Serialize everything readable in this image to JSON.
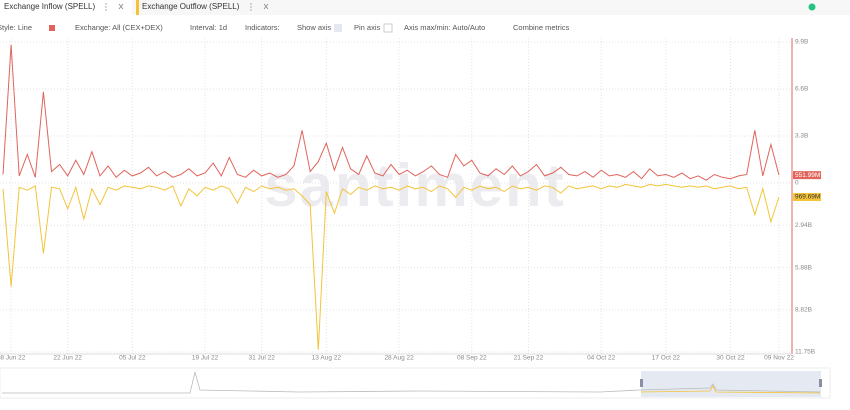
{
  "tabs_source": "series",
  "toolbar": [
    "Style: Line",
    "Exchange: All (CEX+DEX)",
    "Interval: 1d",
    "Indicators:",
    "Show axis",
    "Pin axis",
    "Axis max/min: Auto/Auto",
    "Combine metrics"
  ],
  "watermark": "santiment",
  "chart_data": {
    "type": "line",
    "categories": [
      null,
      "08 Jun 22",
      null,
      null,
      null,
      null,
      null,
      null,
      "22 Jun 22",
      null,
      null,
      null,
      null,
      null,
      null,
      null,
      "05 Jul 22",
      null,
      null,
      null,
      null,
      null,
      null,
      null,
      null,
      "19 Jul 22",
      null,
      null,
      null,
      null,
      null,
      null,
      "31 Jul 22",
      null,
      null,
      null,
      null,
      null,
      null,
      null,
      "13 Aug 22",
      null,
      null,
      null,
      null,
      null,
      null,
      null,
      null,
      "28 Aug 22",
      null,
      null,
      null,
      null,
      null,
      null,
      null,
      null,
      "08 Sep 22",
      null,
      null,
      null,
      null,
      null,
      null,
      "21 Sep 22",
      null,
      null,
      null,
      null,
      null,
      null,
      null,
      null,
      "04 Oct 22",
      null,
      null,
      null,
      null,
      null,
      null,
      null,
      "17 Oct 22",
      null,
      null,
      null,
      null,
      null,
      null,
      null,
      "30 Oct 22",
      null,
      null,
      null,
      null,
      null,
      "09 Nov 22"
    ],
    "ylim": [
      0,
      9.9
    ],
    "yticks": [
      0,
      {
        "value": 3.3,
        "label": "3.3B"
      },
      {
        "value": 6.6,
        "label": "6.6B"
      },
      {
        "value": 9.9,
        "label": "9.9B"
      }
    ],
    "y2lim": [
      0,
      11.75
    ],
    "y2ticks": [
      {
        "value": 2.94,
        "label": "2.94B"
      },
      {
        "value": 5.88,
        "label": "5.88B"
      },
      {
        "value": 8.82,
        "label": "8.82B"
      },
      {
        "value": 11.75,
        "label": "11.75B"
      }
    ],
    "grid": true,
    "series": [
      {
        "name": "Exchange Inflow (SPELL)",
        "color": "#e0645c",
        "values": [
          0.6,
          9.7,
          0.5,
          2.0,
          0.4,
          6.4,
          0.8,
          1.3,
          0.5,
          1.6,
          0.6,
          2.2,
          0.5,
          1.2,
          0.4,
          0.9,
          0.5,
          0.7,
          1.1,
          0.5,
          0.8,
          0.4,
          0.6,
          1.0,
          0.5,
          0.7,
          1.4,
          0.5,
          1.8,
          0.6,
          0.4,
          0.9,
          0.5,
          0.7,
          0.4,
          0.6,
          1.2,
          3.7,
          0.8,
          1.5,
          2.8,
          0.9,
          2.5,
          1.0,
          0.6,
          1.9,
          0.7,
          0.5,
          1.3,
          0.6,
          0.9,
          0.5,
          0.8,
          1.2,
          0.6,
          0.4,
          2.0,
          1.2,
          1.6,
          0.7,
          0.5,
          1.0,
          0.6,
          1.2,
          0.5,
          0.8,
          1.3,
          0.5,
          0.7,
          1.1,
          0.6,
          0.5,
          0.8,
          0.4,
          0.9,
          0.5,
          0.6,
          0.4,
          0.8,
          0.3,
          1.0,
          0.5,
          0.6,
          0.4,
          0.7,
          0.3,
          0.5,
          0.2,
          0.6,
          0.4,
          0.3,
          0.5,
          0.6,
          3.7,
          0.5,
          2.7,
          0.55199
        ],
        "value_labels": {
          "96": "551.99M"
        }
      },
      {
        "name": "Exchange Outflow (SPELL)",
        "color": "#f3c43a",
        "axis": "y2",
        "values": [
          0.4,
          7.2,
          0.3,
          0.5,
          0.2,
          4.9,
          0.3,
          0.4,
          1.8,
          0.3,
          2.5,
          0.4,
          1.5,
          0.3,
          0.5,
          0.2,
          0.3,
          0.4,
          0.2,
          0.3,
          0.5,
          0.2,
          1.6,
          0.4,
          0.9,
          0.3,
          0.5,
          0.2,
          0.4,
          1.4,
          0.3,
          0.6,
          0.2,
          0.4,
          0.3,
          0.5,
          0.4,
          0.9,
          1.5,
          11.6,
          0.6,
          2.1,
          0.4,
          0.8,
          0.3,
          0.5,
          0.2,
          0.4,
          0.3,
          0.5,
          0.2,
          0.4,
          0.3,
          0.6,
          0.2,
          0.4,
          1.0,
          0.3,
          0.5,
          0.2,
          0.4,
          0.3,
          0.6,
          0.2,
          0.4,
          0.3,
          0.5,
          0.2,
          0.3,
          0.7,
          0.2,
          0.4,
          0.3,
          0.2,
          0.4,
          0.2,
          0.3,
          0.1,
          0.2,
          0.3,
          0.1,
          0.2,
          0.1,
          0.2,
          0.3,
          0.2,
          0.3,
          0.2,
          0.4,
          0.3,
          0.2,
          0.4,
          0.3,
          2.2,
          0.4,
          2.7,
          0.96969
        ],
        "value_labels": {
          "96": "969.69M"
        }
      }
    ]
  }
}
